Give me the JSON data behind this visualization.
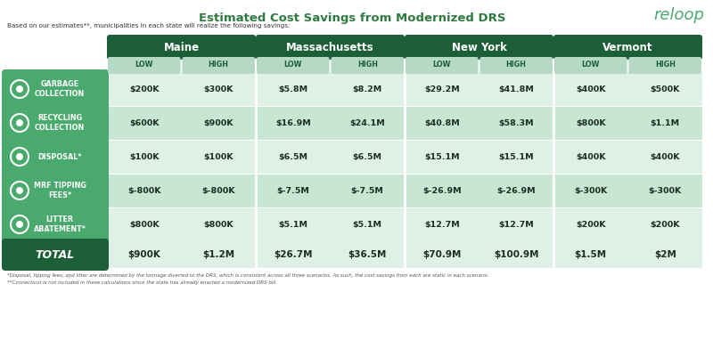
{
  "title": "Estimated Cost Savings from Modernized DRS",
  "subtitle": "Based on our estimates**, municipalities in each state will realize the following savings:",
  "footnote1": "*Disposal, tipping fees, and litter are determined by the tonnage diverted to the DRS, which is consistent across all three scenarios. As such, the cost savings from each are static in each scenario.",
  "footnote2": "**Connecticut is not included in these calculations since the state has already enacted a modernized DRS bill.",
  "logo_text": "reloop",
  "states": [
    "Maine",
    "Massachusetts",
    "New York",
    "Vermont"
  ],
  "col_headers": [
    "LOW",
    "HIGH",
    "LOW",
    "HIGH",
    "LOW",
    "HIGH",
    "LOW",
    "HIGH"
  ],
  "row_labels": [
    "GARBAGE\nCOLLECTION",
    "RECYCLING\nCOLLECTION",
    "DISPOSAL*",
    "MRF TIPPING\nFEES*",
    "LITTER\nABATEMENT*"
  ],
  "total_label": "TOTAL",
  "data": [
    [
      "$200K",
      "$300K",
      "$5.8M",
      "$8.2M",
      "$29.2M",
      "$41.8M",
      "$400K",
      "$500K"
    ],
    [
      "$600K",
      "$900K",
      "$16.9M",
      "$24.1M",
      "$40.8M",
      "$58.3M",
      "$800K",
      "$1.1M"
    ],
    [
      "$100K",
      "$100K",
      "$6.5M",
      "$6.5M",
      "$15.1M",
      "$15.1M",
      "$400K",
      "$400K"
    ],
    [
      "$-800K",
      "$-800K",
      "$-7.5M",
      "$-7.5M",
      "$-26.9M",
      "$-26.9M",
      "$-300K",
      "$-300K"
    ],
    [
      "$800K",
      "$800K",
      "$5.1M",
      "$5.1M",
      "$12.7M",
      "$12.7M",
      "$200K",
      "$200K"
    ]
  ],
  "totals": [
    "$900K",
    "$1.2M",
    "$26.7M",
    "$36.5M",
    "$70.9M",
    "$100.9M",
    "$1.5M",
    "$2M"
  ],
  "color_dark_green": "#1b5e37",
  "color_mid_green": "#4aaa6e",
  "color_light_green": "#c8e6d4",
  "color_lighter_green": "#dff0e6",
  "color_subheader_green": "#b5d9c5",
  "color_white": "#ffffff",
  "color_text_dark": "#1a2e20",
  "color_title_green": "#2d7a40",
  "bg_color": "#ffffff"
}
